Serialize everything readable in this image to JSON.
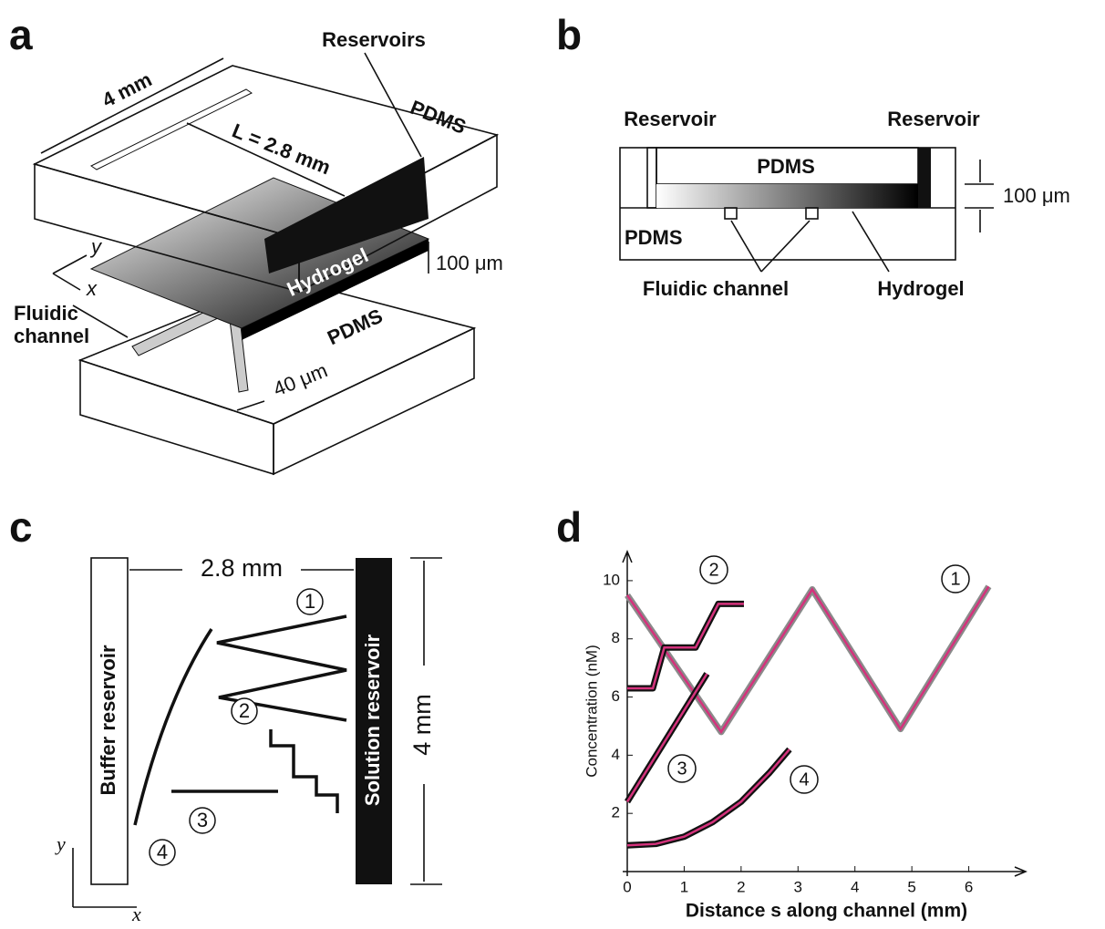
{
  "panels": {
    "a": {
      "letter": "a",
      "reservoirs": "Reservoirs",
      "width": "4 mm",
      "length": "L = 2.8 mm",
      "pdms_top": "PDMS",
      "hydrogel": "Hydrogel",
      "thickness": "100 μm",
      "axis_y": "y",
      "axis_x": "x",
      "channel_line1": "Fluidic",
      "channel_line2": "channel",
      "pdms_bottom": "PDMS",
      "channel_width": "40 μm"
    },
    "b": {
      "letter": "b",
      "reservoir_left": "Reservoir",
      "reservoir_right": "Reservoir",
      "pdms_top": "PDMS",
      "thickness": "100 μm",
      "pdms_bottom": "PDMS",
      "channel": "Fluidic channel",
      "hydrogel": "Hydrogel"
    },
    "c": {
      "letter": "c",
      "distance": "2.8 mm",
      "buffer": "Buffer reservoir",
      "solution": "Solution reservoir",
      "height": "4 mm",
      "path_labels": [
        "1",
        "2",
        "3",
        "4"
      ],
      "axis_y": "y",
      "axis_x": "x"
    },
    "d": {
      "letter": "d",
      "chart": {
        "type": "line",
        "x_label": "Distance s along channel (mm)",
        "y_label": "Concentration (nM)",
        "xlim": [
          0,
          7
        ],
        "ylim": [
          0,
          11
        ],
        "xticks": [
          0,
          1,
          2,
          3,
          4,
          5,
          6
        ],
        "yticks": [
          2,
          4,
          6,
          8,
          10
        ],
        "fit_color": "#d4327c",
        "series": [
          {
            "name": "1",
            "color": "#8a8a8a",
            "x": [
              0,
              1.65,
              3.25,
              4.8,
              6.35
            ],
            "values": [
              9.5,
              4.8,
              9.7,
              4.9,
              9.8
            ]
          },
          {
            "name": "2",
            "color": "#111111",
            "x": [
              0,
              0.45,
              0.65,
              1.2,
              1.6,
              2.05
            ],
            "values": [
              6.3,
              6.3,
              7.7,
              7.7,
              9.2,
              9.2
            ]
          },
          {
            "name": "3",
            "color": "#111111",
            "x": [
              0,
              1.4
            ],
            "values": [
              2.4,
              6.8
            ]
          },
          {
            "name": "4",
            "color": "#111111",
            "x": [
              0,
              0.5,
              1,
              1.5,
              2,
              2.5,
              2.85
            ],
            "values": [
              0.9,
              0.95,
              1.2,
              1.7,
              2.4,
              3.4,
              4.2
            ]
          }
        ]
      }
    }
  }
}
